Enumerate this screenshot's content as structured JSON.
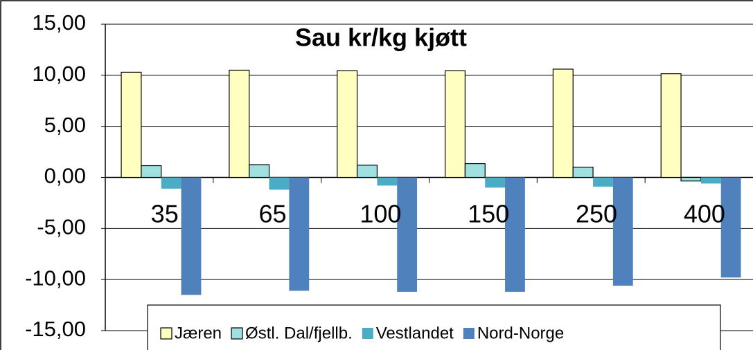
{
  "chart_data": {
    "type": "bar",
    "title": "Sau kr/kg kjøtt",
    "categories": [
      "35",
      "65",
      "100",
      "150",
      "250",
      "400"
    ],
    "series": [
      {
        "name": "Jæren",
        "color": "#ffffc0",
        "edgecolor": "#000000",
        "values": [
          10.3,
          10.5,
          10.45,
          10.45,
          10.6,
          10.15
        ]
      },
      {
        "name": "Østl. Dal/fjellb.",
        "color": "#a0e0e0",
        "edgecolor": "#000000",
        "values": [
          1.15,
          1.25,
          1.2,
          1.35,
          1.0,
          -0.35
        ]
      },
      {
        "name": "Vestlandet",
        "color": "#4bacc6",
        "values": [
          -1.1,
          -1.2,
          -0.8,
          -1.0,
          -0.9,
          -0.6
        ]
      },
      {
        "name": "Nord-Norge",
        "color": "#4f81bd",
        "values": [
          -11.5,
          -11.1,
          -11.2,
          -11.2,
          -10.6,
          -9.8
        ]
      }
    ],
    "ylim": [
      -15,
      15
    ],
    "yticks": [
      {
        "value": -15,
        "label": "-15,00"
      },
      {
        "value": -10,
        "label": "-10,00"
      },
      {
        "value": -5,
        "label": "-5,00"
      },
      {
        "value": 0,
        "label": "0,00"
      },
      {
        "value": 5,
        "label": "5,00"
      },
      {
        "value": 10,
        "label": "10,00"
      },
      {
        "value": 15,
        "label": "15,00"
      }
    ],
    "grid": true,
    "legend": "bottom"
  }
}
